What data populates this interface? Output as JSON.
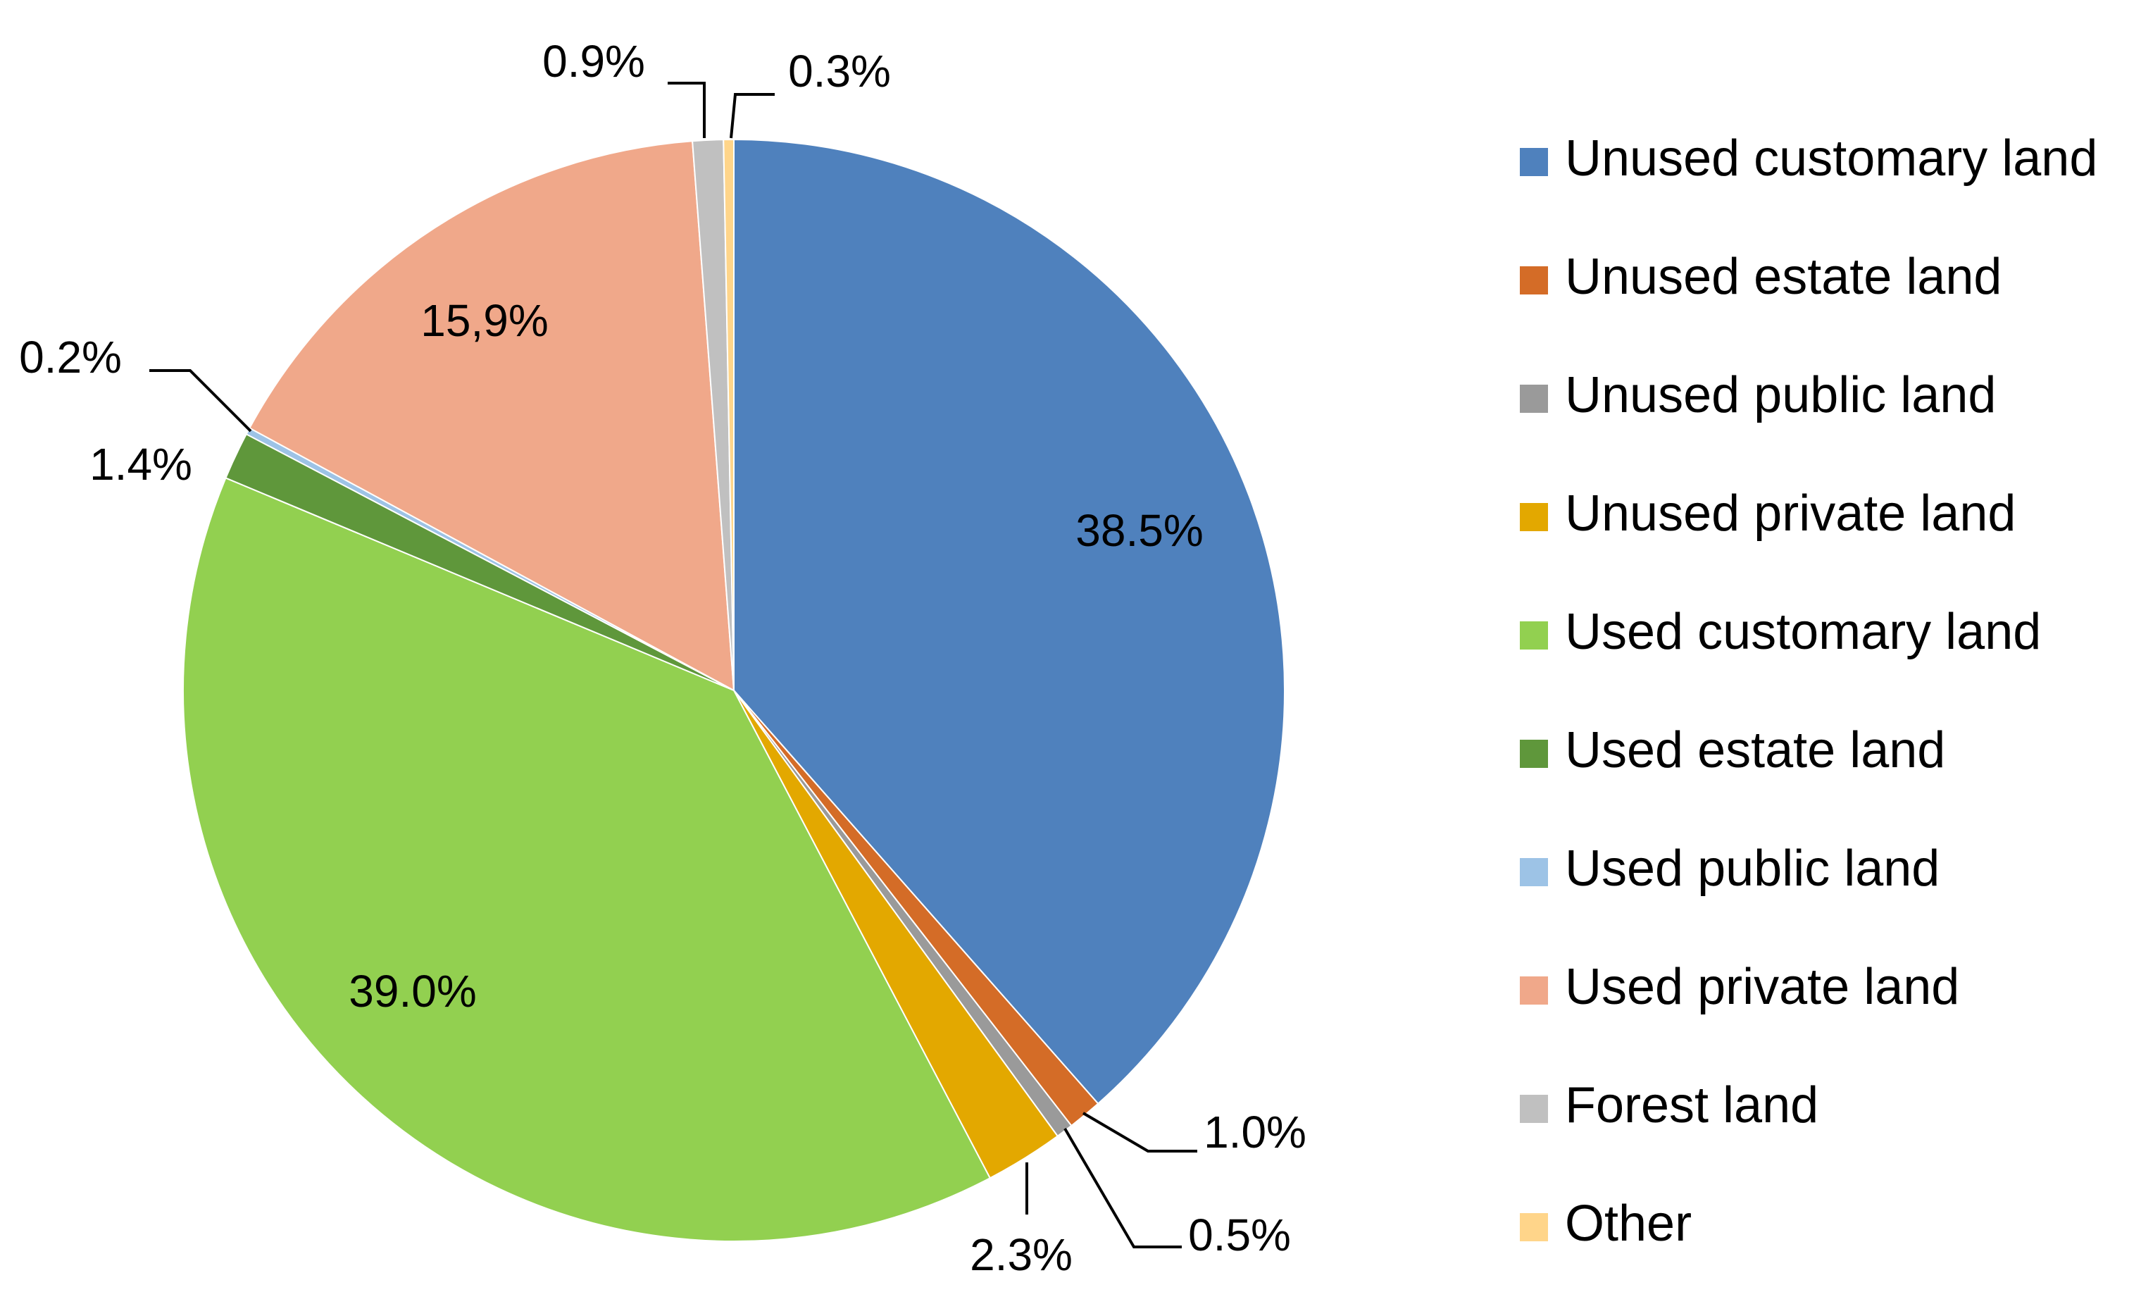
{
  "chart_data": {
    "type": "pie",
    "title": "",
    "start": "12 o'clock",
    "direction": "clockwise",
    "legend_position": "right",
    "slices": [
      {
        "name": "Unused customary land",
        "value": 38.5,
        "label": "38.5%",
        "color": "#4F81BD"
      },
      {
        "name": "Unused estate land",
        "value": 1.0,
        "label": "1.0%",
        "color": "#D46C27"
      },
      {
        "name": "Unused public land",
        "value": 0.5,
        "label": "0.5%",
        "color": "#9A9A9A"
      },
      {
        "name": "Unused private land",
        "value": 2.3,
        "label": "2.3%",
        "color": "#E3A800"
      },
      {
        "name": "Used customary land",
        "value": 39.0,
        "label": "39.0%",
        "color": "#92D050"
      },
      {
        "name": "Used estate land",
        "value": 1.4,
        "label": "1.4%",
        "color": "#5F973B"
      },
      {
        "name": "Used public land",
        "value": 0.2,
        "label": "0.2%",
        "color": "#9DC3E6"
      },
      {
        "name": "Used private land",
        "value": 15.9,
        "label": "15,9%",
        "color": "#F0A88A"
      },
      {
        "name": "Forest land",
        "value": 0.9,
        "label": "0.9%",
        "color": "#C0C0C0"
      },
      {
        "name": "Other",
        "value": 0.3,
        "label": "0.3%",
        "color": "#FFD58A"
      }
    ]
  }
}
